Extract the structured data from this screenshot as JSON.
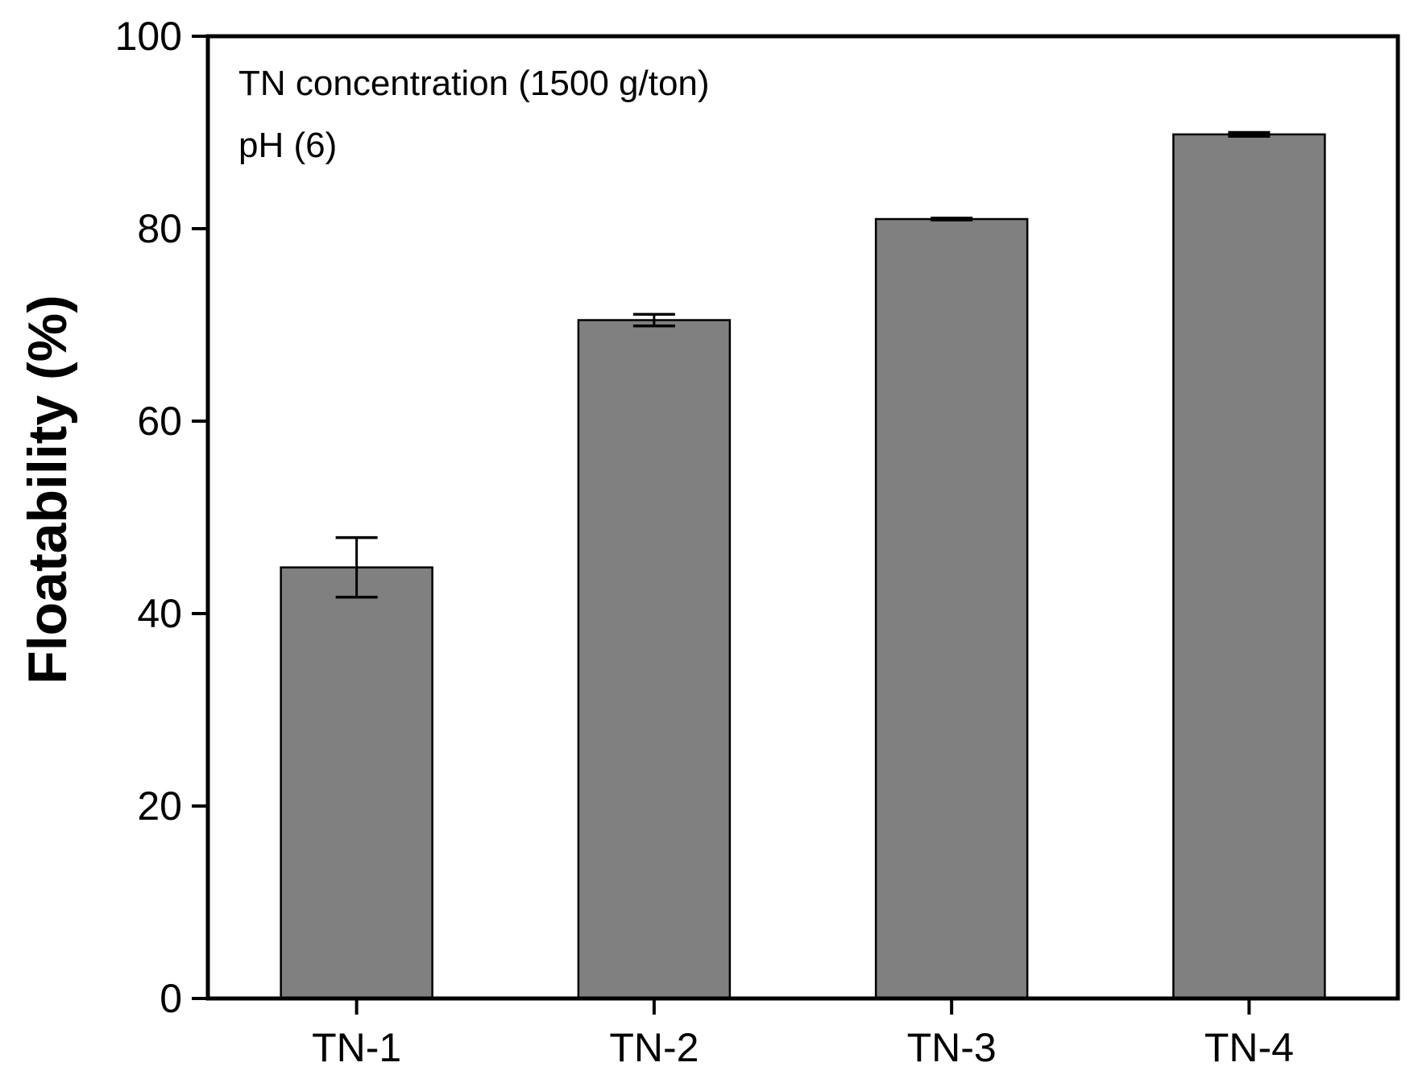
{
  "chart_data": {
    "type": "bar",
    "title": "",
    "xlabel": "",
    "ylabel": "Floatability (%)",
    "categories": [
      "TN-1",
      "TN-2",
      "TN-3",
      "TN-4"
    ],
    "values": [
      44.8,
      70.5,
      81.0,
      89.8
    ],
    "errors": [
      3.1,
      0.6,
      0.1,
      0.2
    ],
    "ylim": [
      0,
      100
    ],
    "yticks": [
      0,
      20,
      40,
      60,
      80,
      100
    ],
    "ytick_labels": [
      "0",
      "20",
      "40",
      "60",
      "80",
      "100"
    ],
    "grid": false,
    "legend": "none",
    "annotations": [
      "TN concentration (1500 g/ton)",
      "pH (6)"
    ],
    "colors": {
      "bar_fill": "#808080",
      "bar_stroke": "#000000",
      "axis": "#000000"
    }
  }
}
